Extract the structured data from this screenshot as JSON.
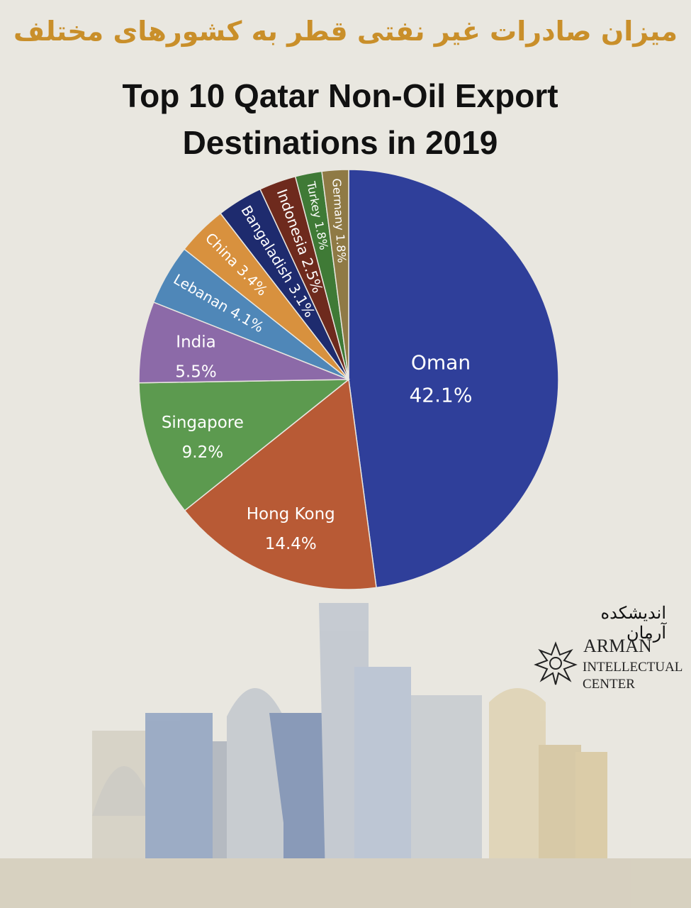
{
  "header": {
    "persian_title": "میزان صادرات غیر نفتی قطر به کشورهای مختلف",
    "title_line1": "Top 10 Qatar Non-Oil Export",
    "title_line2": "Destinations in 2019"
  },
  "chart_data": {
    "type": "pie",
    "title": "Top 10 Qatar Non-Oil Export Destinations in 2019",
    "slices": [
      {
        "label": "Oman",
        "value": 42.1,
        "text": "42.1%",
        "color": "#2f3f9a"
      },
      {
        "label": "Hong Kong",
        "value": 14.4,
        "text": "14.4%",
        "color": "#b85a35"
      },
      {
        "label": "Singapore",
        "value": 9.2,
        "text": "9.2%",
        "color": "#5c9a4f"
      },
      {
        "label": "India",
        "value": 5.5,
        "text": "5.5%",
        "color": "#8c6aa8"
      },
      {
        "label": "Lebanan",
        "value": 4.1,
        "text": "4.1%",
        "color": "#4f87b8"
      },
      {
        "label": "China",
        "value": 3.4,
        "text": "3.4%",
        "color": "#d8913e"
      },
      {
        "label": "Bangaladish",
        "value": 3.1,
        "text": "3.1%",
        "color": "#1e2b6e"
      },
      {
        "label": "Indonesia",
        "value": 2.5,
        "text": "2.5%",
        "color": "#6e2a1d"
      },
      {
        "label": "Turkey",
        "value": 1.8,
        "text": "1.8%",
        "color": "#3f7a36"
      },
      {
        "label": "Germany",
        "value": 1.8,
        "text": "1.8%",
        "color": "#8f7a45"
      }
    ]
  },
  "logo": {
    "persian": "اندیشکده آرمان",
    "line1": "ARMAN",
    "line2": "INTELLECTUAL",
    "line3": "CENTER"
  },
  "colors": {
    "background": "#e9e7e0",
    "persian_title": "#c98f2a"
  }
}
